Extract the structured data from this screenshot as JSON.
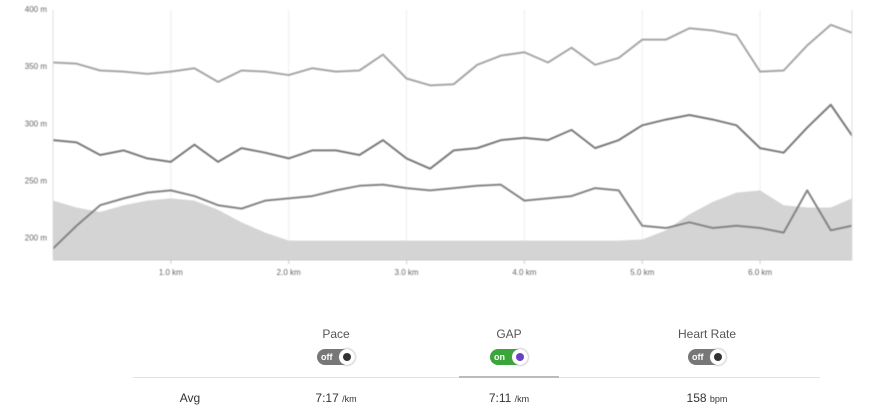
{
  "chart_data": {
    "type": "line",
    "x": [
      0,
      0.2,
      0.4,
      0.6,
      0.8,
      1.0,
      1.2,
      1.4,
      1.6,
      1.8,
      2.0,
      2.2,
      2.4,
      2.6,
      2.8,
      3.0,
      3.2,
      3.4,
      3.6,
      3.8,
      4.0,
      4.2,
      4.4,
      4.6,
      4.8,
      5.0,
      5.2,
      5.4,
      5.6,
      5.8,
      6.0,
      6.2,
      6.4,
      6.6,
      6.78
    ],
    "series": [
      {
        "type": "area",
        "color": "#d4d4d4",
        "values": [
          233,
          227,
          223,
          229,
          233,
          235,
          233,
          225,
          214,
          205,
          198,
          198,
          198,
          198,
          198,
          198,
          198,
          198,
          198,
          198,
          198,
          198,
          198,
          198,
          198,
          199,
          207,
          221,
          232,
          240,
          242,
          229,
          227,
          227,
          235
        ]
      },
      {
        "type": "line",
        "color": "#a6a6a6",
        "values": [
          354,
          353,
          347,
          346,
          344,
          346,
          349,
          337,
          347,
          346,
          343,
          349,
          346,
          347,
          361,
          340,
          334,
          335,
          352,
          360,
          363,
          354,
          367,
          352,
          358,
          374,
          374,
          384,
          382,
          378,
          346,
          347,
          369,
          387,
          380
        ]
      },
      {
        "type": "line",
        "color": "#7a7a7a",
        "values": [
          286,
          284,
          273,
          277,
          270,
          267,
          282,
          267,
          279,
          275,
          270,
          277,
          277,
          273,
          286,
          270,
          261,
          277,
          279,
          286,
          288,
          286,
          295,
          279,
          286,
          299,
          304,
          308,
          304,
          299,
          279,
          275,
          297,
          317,
          290
        ]
      },
      {
        "type": "line",
        "color": "#858585",
        "values": [
          191,
          211,
          229,
          235,
          240,
          242,
          237,
          229,
          226,
          233,
          235,
          237,
          242,
          246,
          247,
          244,
          242,
          244,
          246,
          247,
          233,
          235,
          237,
          244,
          242,
          211,
          209,
          214,
          209,
          211,
          209,
          205,
          242,
          207,
          211
        ]
      }
    ],
    "xlim": [
      0,
      6.78
    ],
    "ylim": [
      181,
      400
    ],
    "xticks": [
      {
        "value": 1,
        "label": "1.0 km"
      },
      {
        "value": 2,
        "label": "2.0 km"
      },
      {
        "value": 3,
        "label": "3.0 km"
      },
      {
        "value": 4,
        "label": "4.0 km"
      },
      {
        "value": 5,
        "label": "5.0 km"
      },
      {
        "value": 6,
        "label": "6.0 km"
      }
    ],
    "yticks": [
      {
        "value": 200,
        "label": "200 m"
      },
      {
        "value": 250,
        "label": "250 m"
      },
      {
        "value": 300,
        "label": "300 m"
      },
      {
        "value": 350,
        "label": "350 m"
      },
      {
        "value": 400,
        "label": "400 m"
      }
    ],
    "grid": "x"
  },
  "stats": {
    "row_label": "Avg",
    "columns": [
      {
        "label": "Pace",
        "toggle": "off",
        "avg": "7:17",
        "unit": "/km"
      },
      {
        "label": "GAP",
        "toggle": "on",
        "avg": "7:11",
        "unit": "/km"
      },
      {
        "label": "Heart Rate",
        "toggle": "off",
        "avg": "158",
        "unit": "bpm"
      }
    ]
  }
}
